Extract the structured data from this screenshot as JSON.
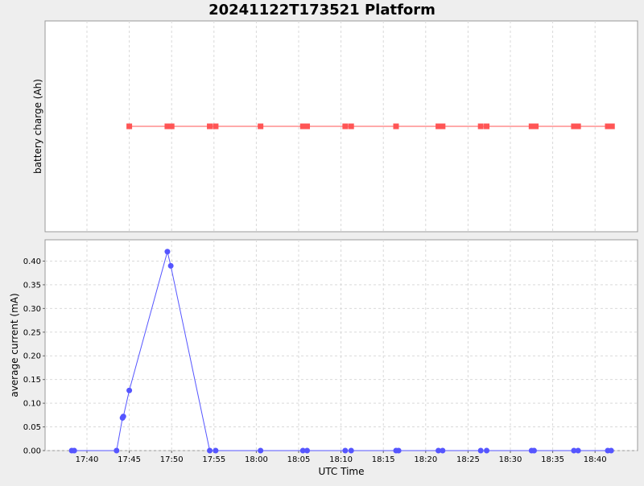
{
  "title": "20241122T173521 Platform",
  "colors": {
    "background": "#eeeeee",
    "plot_background": "#ffffff",
    "grid": "#d9d9d9",
    "top_series": "#ff5555",
    "bottom_series": "#5555ff",
    "axis_text": "#000000"
  },
  "chart_data": [
    {
      "type": "line",
      "marker": "square",
      "title": "",
      "xlabel": "",
      "ylabel": "battery charge (Ah)",
      "x_range": [
        "17:35",
        "18:45"
      ],
      "y_ticks": [],
      "grid": true,
      "series": [
        {
          "name": "",
          "x": [
            "17:45",
            "17:49.5",
            "17:50",
            "17:54.5",
            "17:55.2",
            "18:00.5",
            "18:05.5",
            "18:06",
            "18:10.5",
            "18:11.2",
            "18:16.5",
            "18:21.5",
            "18:22",
            "18:26.5",
            "18:27.2",
            "18:32.5",
            "18:33",
            "18:37.5",
            "18:38",
            "18:41.5",
            "18:42"
          ],
          "values": [
            0,
            0,
            0,
            0,
            0,
            0,
            0,
            0,
            0,
            0,
            0,
            0,
            0,
            0,
            0,
            0,
            0,
            0,
            0,
            0,
            0
          ]
        }
      ]
    },
    {
      "type": "line",
      "marker": "circle",
      "title": "",
      "xlabel": "UTC Time",
      "ylabel": "average current (mA)",
      "x_ticks": [
        "17:40",
        "17:45",
        "17:50",
        "17:55",
        "18:00",
        "18:05",
        "18:10",
        "18:15",
        "18:20",
        "18:25",
        "18:30",
        "18:35",
        "18:40"
      ],
      "y_ticks": [
        "0.00",
        "0.05",
        "0.10",
        "0.15",
        "0.20",
        "0.25",
        "0.30",
        "0.35",
        "0.40"
      ],
      "ylim": [
        0,
        0.445
      ],
      "grid": true,
      "series": [
        {
          "name": "",
          "x": [
            "17:38.2",
            "17:38.5",
            "17:43.5",
            "17:44.2",
            "17:44.3",
            "17:45",
            "17:49.5",
            "17:49.9",
            "17:54.5",
            "17:55.2",
            "18:00.5",
            "18:05.5",
            "18:06",
            "18:10.5",
            "18:11.2",
            "18:16.5",
            "18:16.8",
            "18:21.5",
            "18:22",
            "18:26.5",
            "18:27.2",
            "18:32.5",
            "18:32.8",
            "18:37.5",
            "18:38",
            "18:41.5",
            "18:41.9"
          ],
          "values": [
            0,
            0,
            0,
            0.069,
            0.072,
            0.127,
            0.42,
            0.39,
            0,
            0,
            0,
            0,
            0,
            0,
            0,
            0,
            0,
            0,
            0,
            0,
            0,
            0,
            0,
            0,
            0,
            0,
            0
          ]
        }
      ]
    }
  ]
}
